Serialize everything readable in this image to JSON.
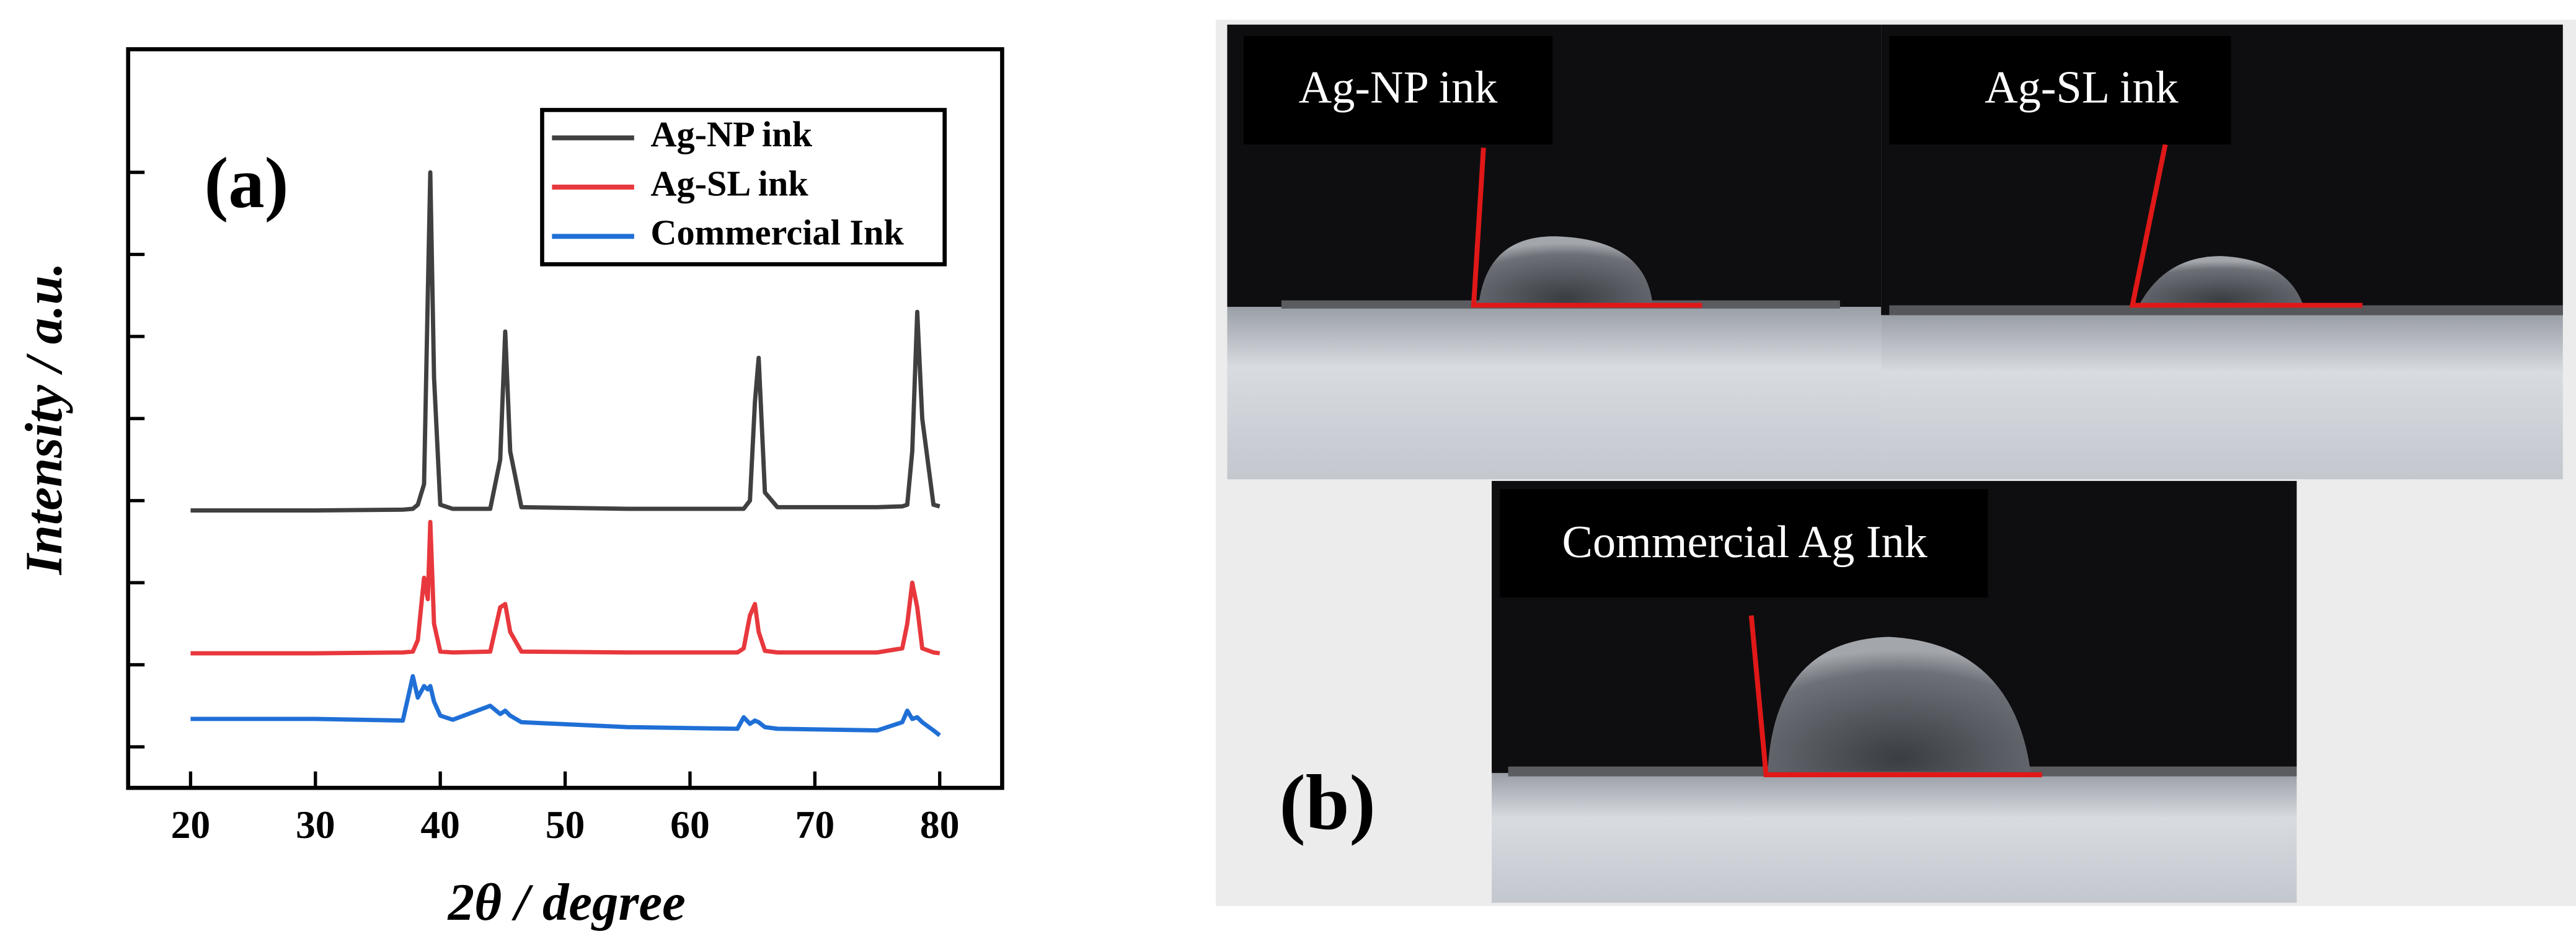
{
  "chart_data": {
    "type": "line",
    "panel_label": "(a)",
    "x_label": "2θ / degree",
    "y_label": "Intensity / a.u.",
    "x": [
      20,
      30,
      37,
      37.8,
      38.2,
      38.7,
      39.0,
      39.2,
      39.5,
      40,
      41,
      44,
      44.8,
      45.2,
      45.6,
      46.5,
      55,
      63.8,
      64.3,
      64.8,
      65.2,
      65.5,
      66,
      67,
      75,
      77.0,
      77.4,
      77.8,
      78.2,
      78.6,
      79.5,
      80
    ],
    "series": [
      {
        "name": "Ag-NP ink",
        "color": "#404040",
        "values": [
          2.88,
          2.88,
          2.89,
          2.9,
          2.95,
          3.2,
          5.5,
          7.0,
          4.5,
          2.95,
          2.9,
          2.9,
          3.5,
          5.06,
          3.6,
          2.92,
          2.9,
          2.9,
          2.9,
          3.0,
          4.2,
          4.74,
          3.1,
          2.92,
          2.92,
          2.93,
          2.95,
          3.6,
          5.3,
          4.0,
          2.95,
          2.93
        ]
      },
      {
        "name": "Ag-SL ink",
        "color": "#e8383d",
        "values": [
          1.14,
          1.14,
          1.15,
          1.16,
          1.3,
          2.06,
          1.8,
          2.74,
          1.5,
          1.16,
          1.15,
          1.16,
          1.7,
          1.74,
          1.4,
          1.16,
          1.15,
          1.15,
          1.2,
          1.6,
          1.74,
          1.4,
          1.17,
          1.15,
          1.15,
          1.2,
          1.5,
          2.0,
          1.7,
          1.2,
          1.15,
          1.14
        ]
      },
      {
        "name": "Commercial Ink",
        "color": "#1f6fd6",
        "values": [
          0.34,
          0.34,
          0.32,
          0.86,
          0.6,
          0.74,
          0.7,
          0.74,
          0.55,
          0.38,
          0.33,
          0.5,
          0.4,
          0.44,
          0.38,
          0.3,
          0.24,
          0.22,
          0.36,
          0.28,
          0.32,
          0.3,
          0.24,
          0.22,
          0.2,
          0.3,
          0.44,
          0.34,
          0.36,
          0.3,
          0.2,
          0.14
        ]
      }
    ],
    "xlim": [
      15,
      85
    ],
    "xticks": [
      20,
      30,
      40,
      50,
      60,
      70,
      80
    ],
    "ylim": [
      -0.5,
      8.5
    ],
    "yticks": [
      0,
      1,
      2,
      3,
      4,
      5,
      6,
      7
    ],
    "legend": "top-right"
  },
  "photo_panel": {
    "label": "(b)",
    "captions": [
      "Ag-NP ink",
      "Ag-SL ink",
      "Commercial Ag Ink"
    ]
  }
}
